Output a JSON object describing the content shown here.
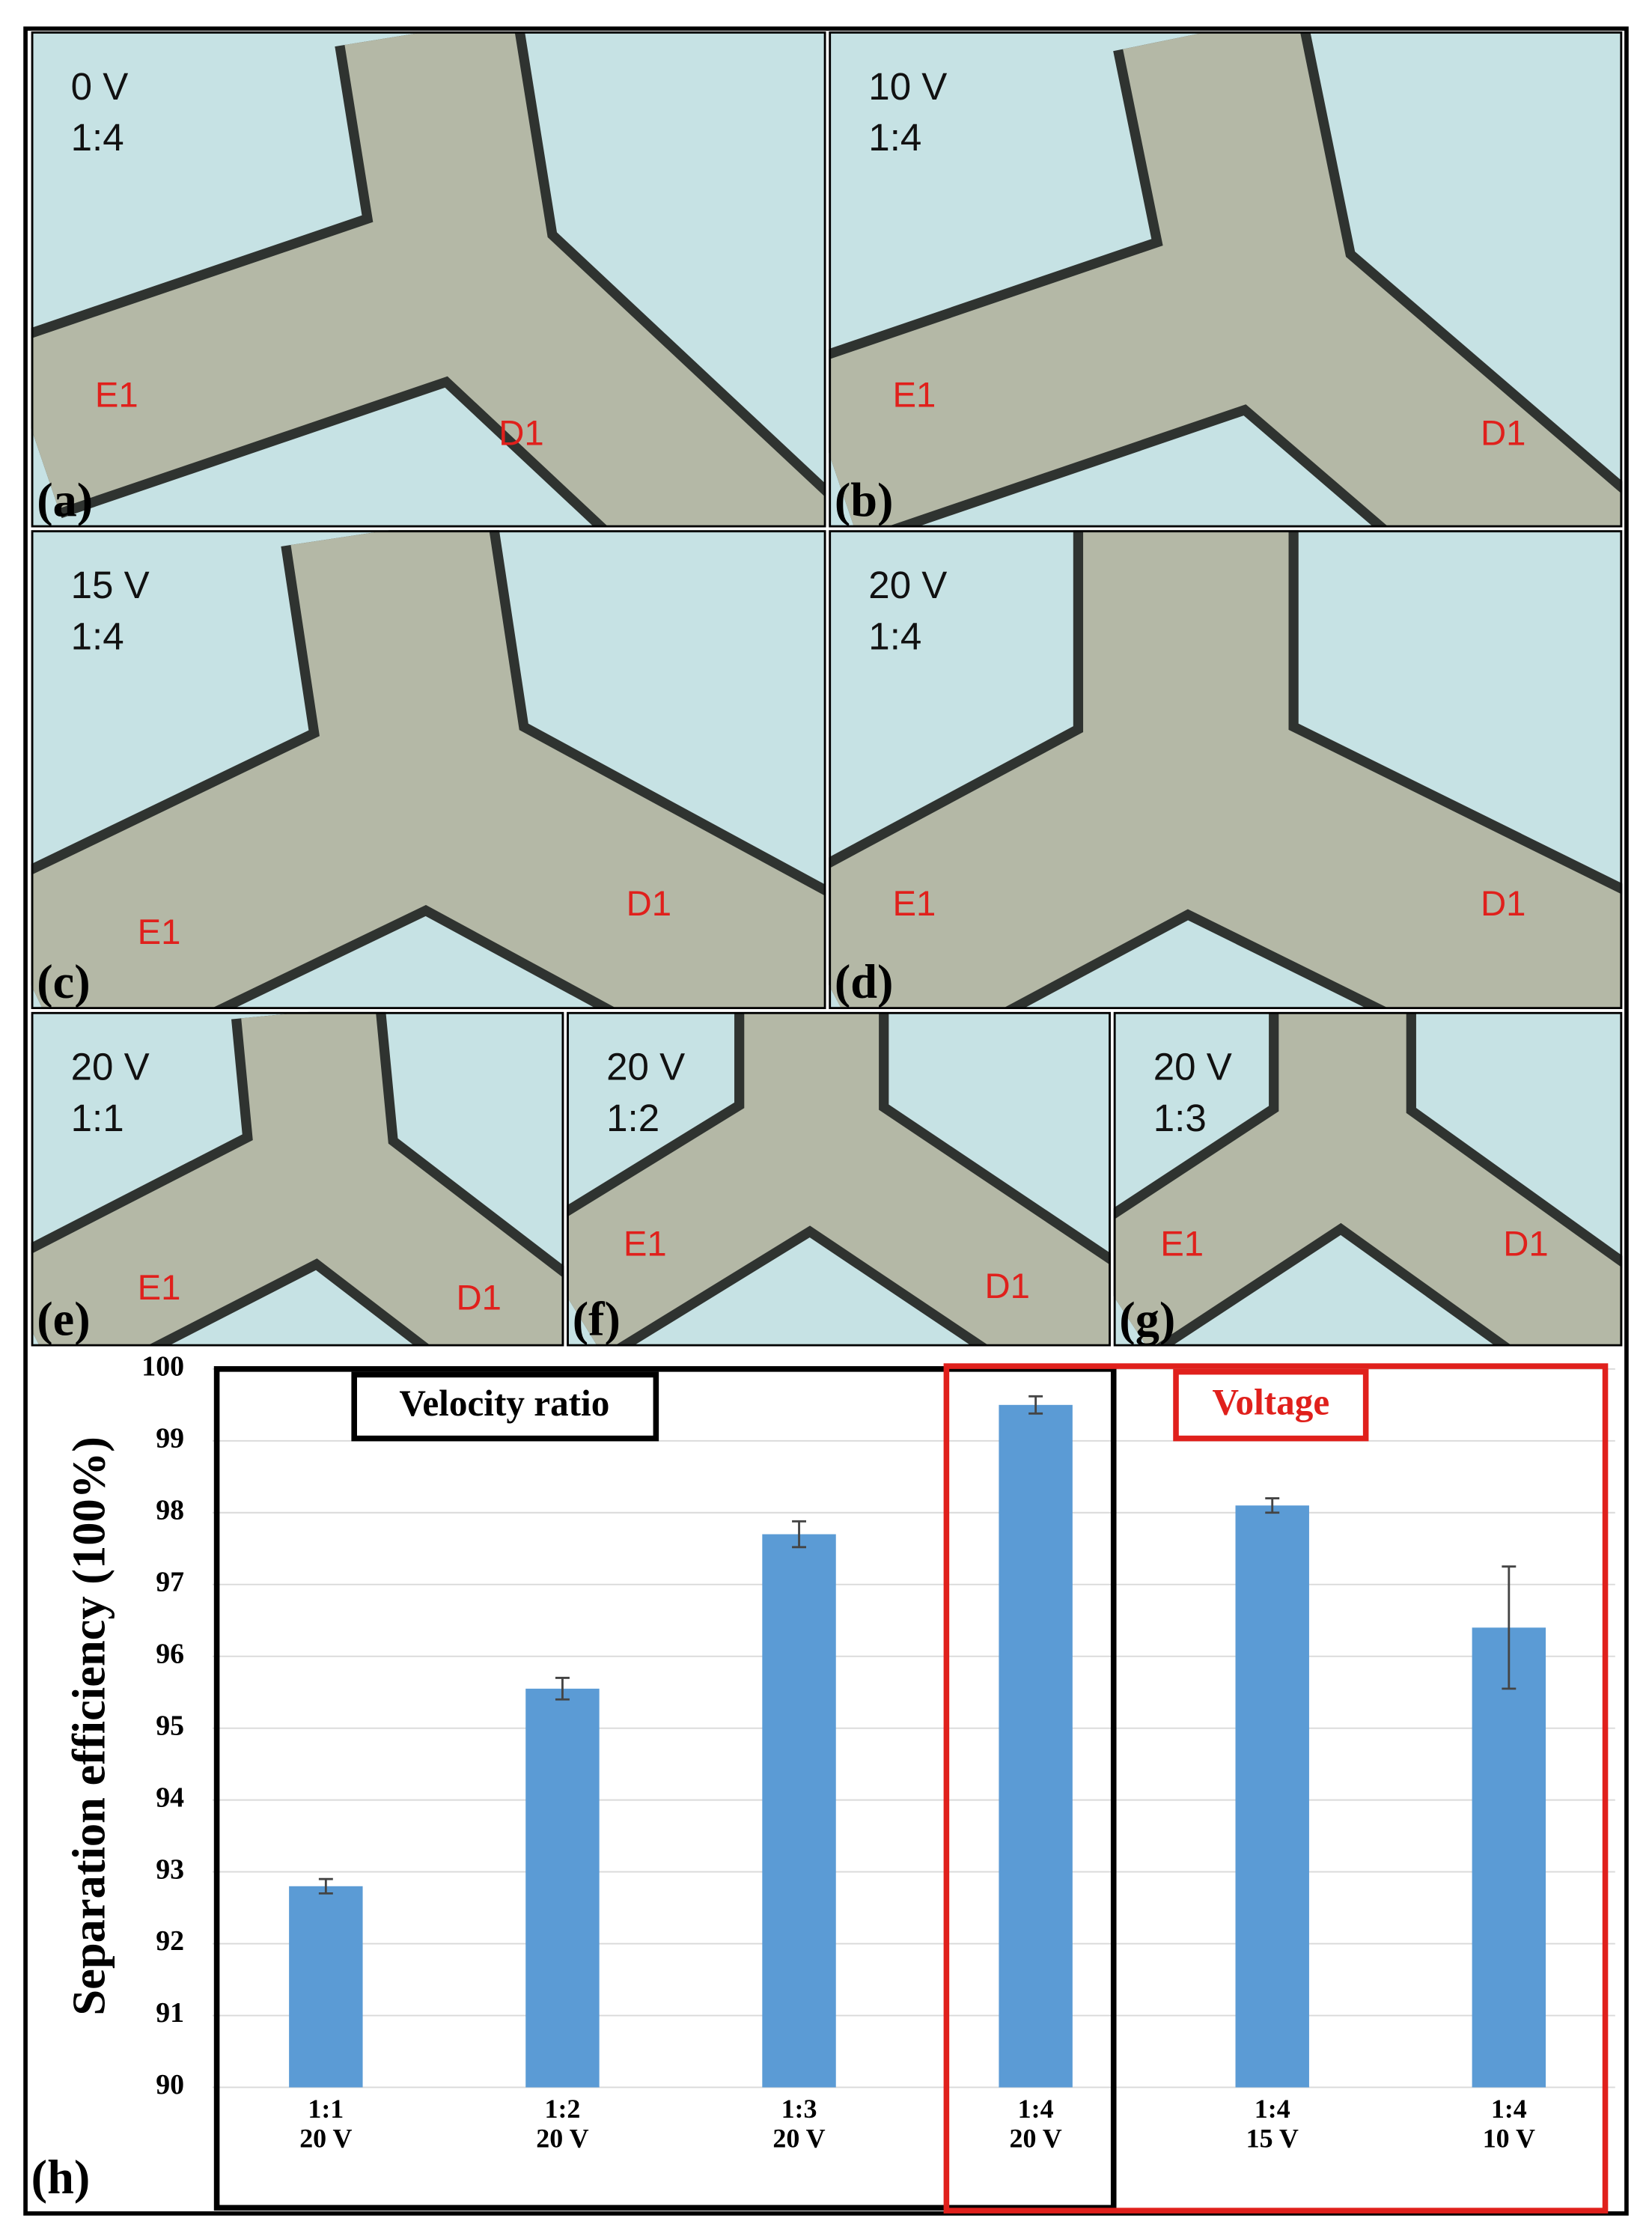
{
  "panels": [
    {
      "label": "(a)",
      "voltage": "0 V",
      "ratio": "1:4",
      "labels": [
        "E1",
        "D1"
      ]
    },
    {
      "label": "(b)",
      "voltage": "10 V",
      "ratio": "1:4",
      "labels": [
        "E1",
        "D1"
      ]
    },
    {
      "label": "(c)",
      "voltage": "15 V",
      "ratio": "1:4",
      "labels": [
        "E1",
        "D1"
      ]
    },
    {
      "label": "(d)",
      "voltage": "20 V",
      "ratio": "1:4",
      "labels": [
        "E1",
        "D1"
      ]
    },
    {
      "label": "(e)",
      "voltage": "20 V",
      "ratio": "1:1",
      "labels": [
        "E1",
        "D1"
      ]
    },
    {
      "label": "(f)",
      "voltage": "20 V",
      "ratio": "1:2",
      "labels": [
        "E1",
        "D1"
      ]
    },
    {
      "label": "(g)",
      "voltage": "20 V",
      "ratio": "1:3",
      "labels": [
        "E1",
        "D1"
      ]
    }
  ],
  "chart_data": {
    "type": "bar",
    "panel_label": "(h)",
    "y_label": "Separation efficiency (100%)",
    "annotations": [
      "Velocity ratio",
      "Voltage"
    ],
    "categories": [
      [
        "1:1",
        "20 V"
      ],
      [
        "1:2",
        "20 V"
      ],
      [
        "1:3",
        "20 V"
      ],
      [
        "1:4",
        "20 V"
      ],
      [
        "1:4",
        "15 V"
      ],
      [
        "1:4",
        "10 V"
      ]
    ],
    "values": [
      92.8,
      95.55,
      97.7,
      99.5,
      98.1,
      96.4
    ],
    "errors": [
      0.1,
      0.15,
      0.18,
      0.12,
      0.1,
      0.85
    ],
    "color": "#5b9bd5",
    "ylim": [
      90,
      100
    ],
    "yticks": [
      90,
      91,
      92,
      93,
      94,
      95,
      96,
      97,
      98,
      99,
      100
    ],
    "grid": true
  }
}
